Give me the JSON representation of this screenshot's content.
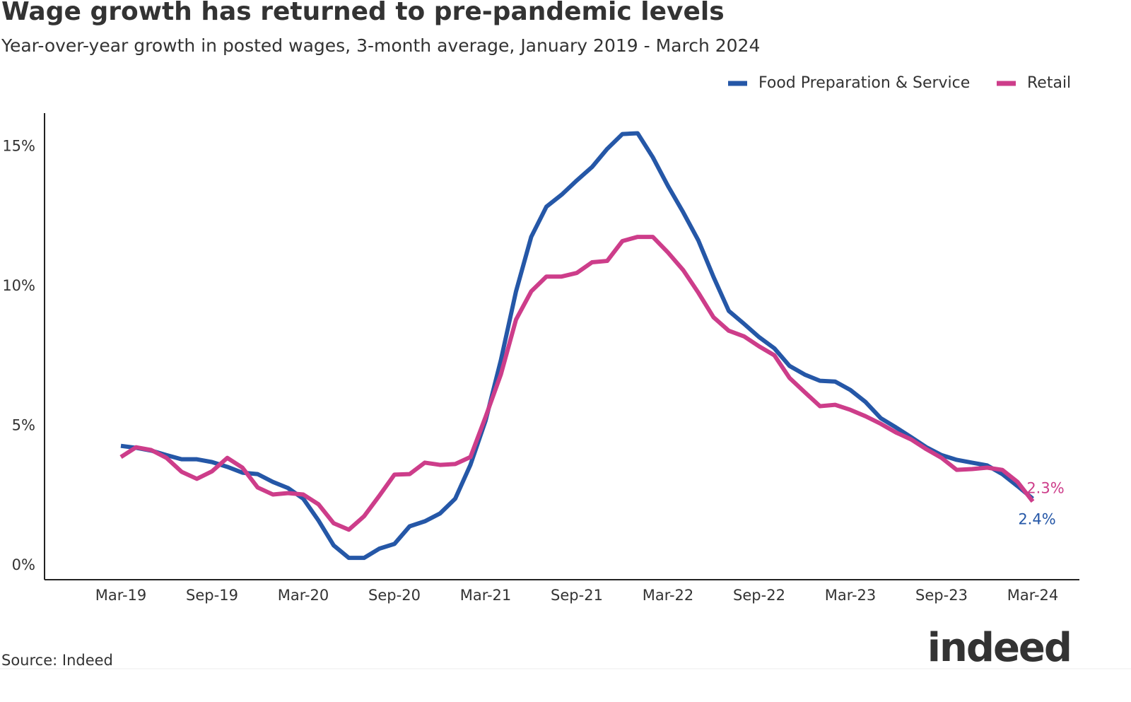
{
  "chart_data": {
    "type": "line",
    "title": "Wage growth has returned to pre-pandemic levels",
    "subtitle": "Year-over-year growth in posted wages,  3-month average, January 2019 - March 2024",
    "source": "Source: Indeed",
    "logo": "indeed",
    "categories": [
      "Mar-19",
      null,
      null,
      null,
      null,
      null,
      "Sep-19",
      null,
      null,
      null,
      null,
      null,
      "Mar-20",
      null,
      null,
      null,
      null,
      null,
      "Sep-20",
      null,
      null,
      null,
      null,
      null,
      "Mar-21",
      null,
      null,
      null,
      null,
      null,
      "Sep-21",
      null,
      null,
      null,
      null,
      null,
      "Mar-22",
      null,
      null,
      null,
      null,
      null,
      "Sep-22",
      null,
      null,
      null,
      null,
      null,
      "Mar-23",
      null,
      null,
      null,
      null,
      null,
      "Sep-23",
      null,
      null,
      null,
      null,
      null,
      "Mar-24"
    ],
    "series": [
      {
        "name": "Food Preparation & Service",
        "color": "#2557a7",
        "values": [
          4.29,
          4.22,
          4.12,
          3.96,
          3.81,
          3.81,
          3.71,
          3.54,
          3.33,
          3.28,
          3.0,
          2.78,
          2.4,
          1.62,
          0.73,
          0.28,
          0.28,
          0.61,
          0.78,
          1.41,
          1.59,
          1.87,
          2.4,
          3.61,
          5.2,
          7.35,
          9.82,
          11.77,
          12.85,
          13.28,
          13.79,
          14.27,
          14.92,
          15.45,
          15.48,
          14.62,
          13.59,
          12.65,
          11.64,
          10.33,
          9.12,
          8.66,
          8.18,
          7.78,
          7.15,
          6.84,
          6.62,
          6.59,
          6.29,
          5.86,
          5.28,
          4.95,
          4.6,
          4.24,
          3.96,
          3.79,
          3.69,
          3.59,
          3.28,
          2.85,
          2.4
        ],
        "value_labels": [
          null,
          null,
          null,
          null,
          null,
          null,
          null,
          null,
          null,
          null,
          null,
          null,
          null,
          null,
          null,
          null,
          null,
          null,
          null,
          null,
          null,
          null,
          null,
          null,
          null,
          null,
          null,
          null,
          null,
          null,
          null,
          null,
          null,
          null,
          null,
          null,
          null,
          null,
          null,
          null,
          null,
          null,
          null,
          null,
          null,
          null,
          null,
          null,
          null,
          null,
          null,
          null,
          null,
          null,
          null,
          null,
          null,
          null,
          null,
          null,
          "2.4%"
        ]
      },
      {
        "name": "Retail",
        "color": "#cd3d8a",
        "values": [
          3.89,
          4.24,
          4.14,
          3.86,
          3.36,
          3.11,
          3.38,
          3.86,
          3.51,
          2.8,
          2.55,
          2.6,
          2.55,
          2.2,
          1.52,
          1.29,
          1.77,
          2.5,
          3.26,
          3.28,
          3.69,
          3.61,
          3.64,
          3.89,
          5.33,
          6.84,
          8.81,
          9.82,
          10.35,
          10.35,
          10.48,
          10.86,
          10.91,
          11.62,
          11.77,
          11.77,
          11.21,
          10.58,
          9.77,
          8.89,
          8.41,
          8.21,
          7.85,
          7.53,
          6.72,
          6.21,
          5.71,
          5.76,
          5.58,
          5.35,
          5.08,
          4.77,
          4.52,
          4.17,
          3.86,
          3.43,
          3.46,
          3.51,
          3.43,
          3.0,
          2.3
        ],
        "value_labels": [
          null,
          null,
          null,
          null,
          null,
          null,
          null,
          null,
          null,
          null,
          null,
          null,
          null,
          null,
          null,
          null,
          null,
          null,
          null,
          null,
          null,
          null,
          null,
          null,
          null,
          null,
          null,
          null,
          null,
          null,
          null,
          null,
          null,
          null,
          null,
          null,
          null,
          null,
          null,
          null,
          null,
          null,
          null,
          null,
          null,
          null,
          null,
          null,
          null,
          null,
          null,
          null,
          null,
          null,
          null,
          null,
          null,
          null,
          null,
          null,
          "2.3%"
        ]
      }
    ],
    "ylim": [
      -0.5,
      16.2
    ],
    "yticks": [
      {
        "value": 0,
        "label": "0%"
      },
      {
        "value": 5,
        "label": "5%"
      },
      {
        "value": 10,
        "label": "10%"
      },
      {
        "value": 15,
        "label": "15%"
      }
    ],
    "grid": false,
    "legend": "top-right"
  }
}
